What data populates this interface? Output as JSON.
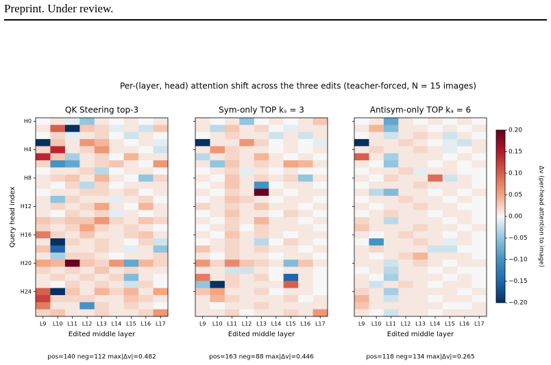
{
  "header": "Preprint. Under review.",
  "suptitle": "Per-(layer, head) attention shift across the three edits (teacher-forced, N = 15 images)",
  "colorbar": {
    "label": "Δv (per-head attention to image)",
    "cmap": "RdBu_r",
    "zlim": [
      -0.2,
      0.2
    ],
    "ticks": [
      {
        "value": 0.2,
        "label": "0.20"
      },
      {
        "value": 0.15,
        "label": "0.15"
      },
      {
        "value": 0.1,
        "label": "0.10"
      },
      {
        "value": 0.05,
        "label": "0.05"
      },
      {
        "value": 0,
        "label": "0.00"
      },
      {
        "value": -0.05,
        "label": "−0.05"
      },
      {
        "value": -0.1,
        "label": "−0.10"
      },
      {
        "value": -0.15,
        "label": "−0.15"
      },
      {
        "value": -0.2,
        "label": "−0.20"
      }
    ]
  },
  "chart_data": [
    {
      "type": "heatmap",
      "title": "QK Steering top-3",
      "x_label": "Edited middle layer",
      "y_label": "Query head index",
      "categories": [
        "L9",
        "L10",
        "L11",
        "L12",
        "L13",
        "L14",
        "L15",
        "L16",
        "L17"
      ],
      "y_categories": [
        "H0",
        null,
        null,
        null,
        "H4",
        null,
        null,
        null,
        "H8",
        null,
        null,
        null,
        "H12",
        null,
        null,
        null,
        "H16",
        null,
        null,
        null,
        "H20",
        null,
        null,
        null,
        "H24",
        null,
        null,
        null
      ],
      "footer": "pos=140   neg=112   max|Δv|=0.482",
      "values": [
        [
          0,
          0.01,
          -0.01,
          -0.05,
          0.01,
          0,
          0.01,
          0,
          0.01
        ],
        [
          0.01,
          0.1,
          -0.2,
          0.03,
          0.02,
          -0.01,
          0.01,
          -0.02,
          0.03
        ],
        [
          0,
          0.02,
          -0.01,
          0.01,
          0.02,
          0,
          -0.02,
          0.01,
          0
        ],
        [
          -0.2,
          0.03,
          0.01,
          0.06,
          0.04,
          0.01,
          0,
          0.01,
          -0.01
        ],
        [
          0.02,
          0.14,
          0.01,
          0.02,
          0.06,
          0.01,
          0.01,
          0,
          -0.02
        ],
        [
          0.14,
          0.03,
          -0.04,
          0.01,
          0.02,
          0,
          0.04,
          0.01,
          0.01
        ],
        [
          0.02,
          -0.1,
          -0.08,
          0.01,
          0.02,
          0.03,
          0.01,
          0,
          0.06
        ],
        [
          0,
          0.01,
          0.01,
          0.02,
          -0.03,
          0,
          0.01,
          0.01,
          0
        ],
        [
          0.01,
          0.02,
          0.03,
          0.01,
          0.04,
          0.01,
          0,
          -0.05,
          0.02
        ],
        [
          0.01,
          0,
          0.02,
          -0.03,
          0.02,
          0,
          0.01,
          0.01,
          0.01
        ],
        [
          0,
          0.01,
          0.01,
          0.02,
          0.02,
          0.01,
          0.02,
          0,
          0.01
        ],
        [
          0.01,
          -0.05,
          0.02,
          0.01,
          0.01,
          -0.01,
          0.01,
          0.02,
          0
        ],
        [
          0.01,
          0.02,
          0.01,
          0.02,
          0.05,
          0.01,
          0,
          0.04,
          0.01
        ],
        [
          0.01,
          0,
          0.02,
          0.01,
          0.02,
          -0.01,
          0.01,
          0,
          0.01
        ],
        [
          0.03,
          0.02,
          0.03,
          0.03,
          0.06,
          0.02,
          0.01,
          0.03,
          0.02
        ],
        [
          0.02,
          0.01,
          0.02,
          0.05,
          0.02,
          0.01,
          0.02,
          0.01,
          0
        ],
        [
          0.08,
          0.02,
          0.01,
          0.03,
          0.01,
          0.01,
          0.02,
          0.03,
          0.01
        ],
        [
          0.01,
          -0.2,
          0.02,
          0.01,
          0.02,
          0.01,
          0,
          0.02,
          -0.02
        ],
        [
          0.03,
          -0.15,
          0.01,
          0.01,
          0.02,
          0.01,
          -0.01,
          0.01,
          -0.05
        ],
        [
          0.01,
          -0.04,
          0.02,
          0.02,
          0.01,
          0,
          0.01,
          0.01,
          0.02
        ],
        [
          0.05,
          0.04,
          0.2,
          0.03,
          0.02,
          0.06,
          -0.08,
          0.04,
          0.02
        ],
        [
          0.02,
          0.01,
          0.02,
          0.01,
          0.03,
          0.01,
          0.02,
          0.01,
          0.01
        ],
        [
          0.01,
          0.02,
          0.01,
          0.02,
          0.01,
          0.02,
          -0.06,
          0.01,
          0
        ],
        [
          0.01,
          0,
          0.02,
          0.01,
          0.02,
          0.01,
          -0.02,
          0.02,
          0
        ],
        [
          0.1,
          -0.2,
          0.03,
          0.01,
          0.04,
          0.02,
          0.04,
          0.01,
          0.05
        ],
        [
          0.12,
          0.02,
          0.02,
          0.02,
          0.01,
          0.01,
          0.03,
          0.02,
          0.01
        ],
        [
          0.08,
          0.01,
          0.01,
          -0.1,
          0.02,
          0.01,
          0.02,
          0.01,
          0
        ],
        [
          0.02,
          0.03,
          0.01,
          0.01,
          0.02,
          0.01,
          0.01,
          0.02,
          0.06
        ]
      ]
    },
    {
      "type": "heatmap",
      "title": "Sym-only TOP kₛ = 3",
      "x_label": "Edited middle layer",
      "categories": [
        "L9",
        "L10",
        "L11",
        "L12",
        "L13",
        "L14",
        "L15",
        "L16",
        "L17"
      ],
      "footer": "pos=163   neg=88   max|Δv|=0.446",
      "values": [
        [
          0.01,
          0,
          0.01,
          -0.05,
          0,
          0.01,
          0,
          0.01,
          0.03
        ],
        [
          0.01,
          -0.03,
          0.03,
          0.01,
          0.02,
          0,
          -0.01,
          0.01,
          0.01
        ],
        [
          0,
          0.01,
          0.02,
          0.01,
          0.01,
          -0.02,
          0.01,
          -0.02,
          0.01
        ],
        [
          -0.2,
          0.01,
          0.01,
          0.06,
          0.02,
          0,
          0.01,
          0,
          -0.01
        ],
        [
          0.01,
          0.06,
          0.02,
          0.01,
          0.01,
          0,
          0.01,
          0,
          0.01
        ],
        [
          -0.03,
          0.01,
          0.02,
          0.01,
          0.04,
          0.01,
          0,
          0.01,
          0
        ],
        [
          0.01,
          -0.05,
          0.03,
          0.01,
          0.02,
          0.01,
          0.05,
          0.04,
          0.01
        ],
        [
          0,
          0.01,
          0.02,
          -0.01,
          0.01,
          0,
          0.01,
          0,
          0
        ],
        [
          0.01,
          0,
          0.03,
          0.01,
          0.02,
          0.01,
          0.02,
          -0.05,
          0.01
        ],
        [
          0,
          0.01,
          0.03,
          0.01,
          -0.1,
          0,
          0.01,
          0.01,
          0
        ],
        [
          0.01,
          0,
          0.02,
          0.01,
          0.2,
          0.01,
          0,
          0.01,
          0.01
        ],
        [
          0,
          0.01,
          0.03,
          0.02,
          0.01,
          0,
          0.01,
          0.01,
          0
        ],
        [
          0.02,
          0.01,
          0.02,
          0.01,
          0.03,
          0.01,
          0.01,
          0,
          0.01
        ],
        [
          0,
          0.01,
          0.03,
          0.01,
          0.01,
          0,
          0.02,
          0.01,
          0
        ],
        [
          0.01,
          0,
          0.02,
          0.01,
          0.04,
          0.01,
          0.01,
          0,
          0.01
        ],
        [
          0,
          0.01,
          0.02,
          0,
          0.02,
          0.01,
          0.01,
          0.01,
          0
        ],
        [
          0.01,
          0,
          0.03,
          0.01,
          0.02,
          0.01,
          0,
          0.01,
          0.01
        ],
        [
          0,
          0.01,
          0.02,
          0.01,
          -0.03,
          0,
          0.02,
          0.01,
          0
        ],
        [
          0.03,
          0.01,
          0.02,
          0.01,
          0.02,
          0.01,
          0.01,
          0,
          0.01
        ],
        [
          0.01,
          0,
          0.02,
          0.01,
          0.01,
          0,
          0.01,
          0.01,
          0
        ],
        [
          0.06,
          0.02,
          0.07,
          0.03,
          0.02,
          0.01,
          -0.06,
          0.03,
          0.01
        ],
        [
          0.01,
          0.01,
          -0.02,
          -0.02,
          0.01,
          0,
          0.01,
          0.01,
          0
        ],
        [
          0.08,
          0.01,
          0.02,
          0.01,
          0.02,
          0,
          -0.15,
          0.01,
          0
        ],
        [
          -0.05,
          -0.2,
          0.02,
          0.01,
          0.01,
          0.01,
          0.1,
          0.01,
          0
        ],
        [
          0.03,
          0.05,
          0.01,
          0.01,
          0.02,
          0,
          0.01,
          0.01,
          0
        ],
        [
          0.01,
          0.04,
          0.02,
          0.01,
          0.01,
          0.01,
          0.02,
          0,
          0.01
        ],
        [
          0.01,
          0,
          0.01,
          0.01,
          0.02,
          0.01,
          0.01,
          0.01,
          0.01
        ],
        [
          0.01,
          0.01,
          0.02,
          0,
          0.01,
          0.01,
          0.02,
          0.01,
          0.06
        ]
      ]
    },
    {
      "type": "heatmap",
      "title": "Antisym-only TOP kₐ = 6",
      "x_label": "Edited middle layer",
      "categories": [
        "L9",
        "L10",
        "L11",
        "L12",
        "L13",
        "L14",
        "L15",
        "L16",
        "L17"
      ],
      "footer": "pos=118   neg=134   max|Δv|=0.265",
      "values": [
        [
          0,
          0.01,
          -0.08,
          0.01,
          0,
          0.01,
          0,
          0.01,
          0
        ],
        [
          0.01,
          0.04,
          -0.06,
          0.01,
          0.01,
          0,
          0.01,
          0,
          0.01
        ],
        [
          0,
          0.01,
          -0.02,
          0.01,
          0.02,
          0.01,
          -0.02,
          0.01,
          0
        ],
        [
          -0.2,
          0.01,
          0.01,
          0.02,
          0.01,
          0,
          -0.01,
          -0.02,
          0.01
        ],
        [
          0.01,
          0.02,
          0.01,
          0.01,
          0.02,
          0.01,
          -0.01,
          0,
          0.01
        ],
        [
          0.1,
          0.01,
          -0.04,
          0.01,
          0.01,
          0.01,
          0,
          0.01,
          0
        ],
        [
          0.01,
          0,
          -0.05,
          0.01,
          0.01,
          0,
          0.01,
          0,
          0.01
        ],
        [
          0,
          0.01,
          0.01,
          0.02,
          -0.01,
          0.01,
          0.01,
          0,
          0
        ],
        [
          0.01,
          0,
          0.02,
          0.01,
          0.01,
          0.09,
          -0.02,
          0.01,
          0
        ],
        [
          0,
          0.01,
          0.01,
          0.01,
          0.02,
          0.01,
          0.01,
          0.01,
          0
        ],
        [
          0.01,
          -0.03,
          -0.06,
          0.01,
          0.01,
          0,
          0.01,
          0,
          0.01
        ],
        [
          0,
          0.01,
          0.01,
          0.02,
          0.01,
          0.01,
          0,
          0.01,
          0
        ],
        [
          0.01,
          0,
          0.01,
          0.01,
          0.02,
          0.01,
          0.01,
          0,
          0
        ],
        [
          0,
          0.01,
          0.02,
          0.01,
          0.01,
          0,
          0.01,
          0.01,
          0
        ],
        [
          0.02,
          0.01,
          -0.03,
          0.01,
          0.01,
          0.01,
          0,
          0.01,
          0
        ],
        [
          0.03,
          0.01,
          0.01,
          0.01,
          0.02,
          0.01,
          0.01,
          0,
          0.01
        ],
        [
          0.01,
          0,
          0.01,
          0.02,
          0.01,
          0.01,
          0,
          0.01,
          0
        ],
        [
          0,
          -0.1,
          0.01,
          0.01,
          0.02,
          0.01,
          -0.01,
          0.01,
          0
        ],
        [
          0.01,
          0.02,
          0.01,
          0.01,
          0.01,
          -0.02,
          -0.02,
          0,
          0
        ],
        [
          0.01,
          0,
          0.01,
          0.02,
          0.04,
          0.01,
          0.01,
          0.01,
          0
        ],
        [
          0.01,
          0.01,
          -0.02,
          0.01,
          0.02,
          0.01,
          0,
          0.01,
          0.01
        ],
        [
          0,
          0.01,
          -0.03,
          0.01,
          0.01,
          0,
          0.01,
          0,
          0
        ],
        [
          0.01,
          0,
          -0.04,
          0.01,
          0.01,
          0.01,
          0,
          0.01,
          0
        ],
        [
          0.01,
          -0.02,
          0.01,
          0.02,
          0.01,
          0,
          0.01,
          0.01,
          0
        ],
        [
          0.02,
          0.01,
          -0.04,
          0.01,
          0.01,
          0.01,
          0.01,
          0,
          0.01
        ],
        [
          0.04,
          0.01,
          -0.02,
          0.01,
          0.01,
          0,
          0.01,
          0.01,
          0
        ],
        [
          0.03,
          0.01,
          0.01,
          0.01,
          0.01,
          0.01,
          0,
          0,
          0.01
        ],
        [
          0.01,
          0,
          -0.02,
          0.01,
          0.01,
          0,
          0.01,
          0.01,
          0.01
        ]
      ]
    }
  ]
}
